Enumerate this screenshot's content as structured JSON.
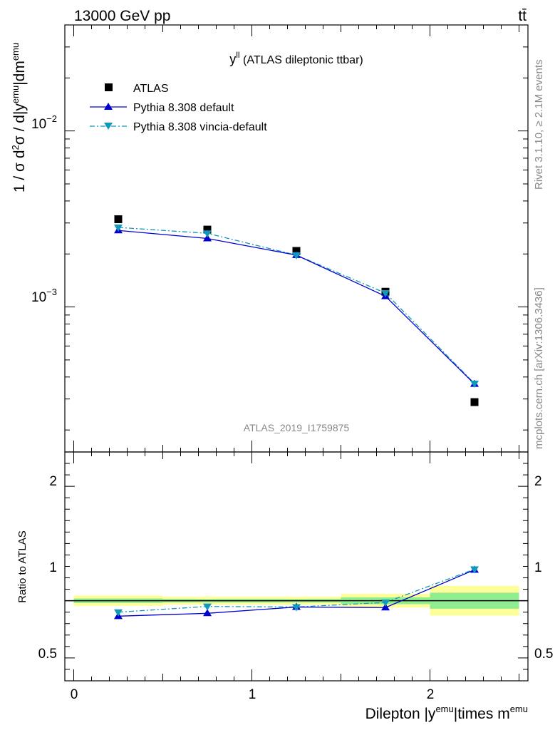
{
  "header": {
    "energy_label": "13000 GeV pp",
    "process_label": "tt̄"
  },
  "side_labels": {
    "rivet": "Rivet 3.1.10, ≥ 2.1M events",
    "mcplots": "mcplots.cern.ch [arXiv:1306.3436]"
  },
  "watermark": "ATLAS_2019_I1759875",
  "colors": {
    "atlas": "#000000",
    "pythia_default": "#0000cc",
    "pythia_vincia": "#1199bb",
    "band_inner": "#90ee90",
    "band_outer": "#ffff99"
  },
  "chart_data": [
    {
      "type": "scatter",
      "panel": "main",
      "title_main": "y",
      "title_sup": "ll",
      "title_rest": " (ATLAS dileptonic ttbar)",
      "ylabel": "1 / σ  d²σ / d|y^emu|dm^emu",
      "yscale": "log",
      "ylim": [
        0.00015,
        0.04
      ],
      "xlim": [
        -0.05,
        2.55
      ],
      "yticks": [
        {
          "value": 0.01,
          "base": "10",
          "exp": "−2"
        },
        {
          "value": 0.001,
          "base": "10",
          "exp": "−3"
        }
      ],
      "legend": [
        {
          "label": "ATLAS",
          "style": "square"
        },
        {
          "label": "Pythia 8.308 default",
          "style": "solid-triangle-up"
        },
        {
          "label": "Pythia 8.308 vincia-default",
          "style": "dashdot-triangle-down"
        }
      ],
      "legend_position": "top-left",
      "series": [
        {
          "name": "ATLAS",
          "x": [
            0.25,
            0.75,
            1.25,
            1.75,
            2.25
          ],
          "y": [
            0.00315,
            0.00275,
            0.00208,
            0.00122,
            0.000288
          ]
        },
        {
          "name": "Pythia 8.308 default",
          "x": [
            0.25,
            0.75,
            1.25,
            1.75,
            2.25
          ],
          "y": [
            0.00272,
            0.00245,
            0.00197,
            0.00115,
            0.000365
          ]
        },
        {
          "name": "Pythia 8.308 vincia-default",
          "x": [
            0.25,
            0.75,
            1.25,
            1.75,
            2.25
          ],
          "y": [
            0.00283,
            0.00262,
            0.00197,
            0.0012,
            0.000367
          ]
        }
      ]
    },
    {
      "type": "line",
      "panel": "ratio",
      "ylabel": "Ratio to ATLAS",
      "ylim": [
        0.3,
        2.3
      ],
      "xlim": [
        -0.05,
        2.55
      ],
      "yticks": [
        {
          "value": 0.5,
          "label": "0.5"
        },
        {
          "value": 1,
          "label": "1"
        },
        {
          "value": 2,
          "label": "2"
        }
      ],
      "xticks": [
        {
          "value": 0,
          "label": "0"
        },
        {
          "value": 1,
          "label": "1"
        },
        {
          "value": 2,
          "label": "2"
        }
      ],
      "xlabel_main": "Dilepton |y",
      "xlabel_sup1": "emu",
      "xlabel_mid": "|times m",
      "xlabel_sup2": "emu",
      "bands": [
        {
          "x0": 0.0,
          "x1": 0.5,
          "inner": 0.02,
          "outer": 0.045
        },
        {
          "x0": 0.5,
          "x1": 1.0,
          "inner": 0.015,
          "outer": 0.035
        },
        {
          "x0": 1.0,
          "x1": 1.5,
          "inner": 0.015,
          "outer": 0.035
        },
        {
          "x0": 1.5,
          "x1": 2.0,
          "inner": 0.03,
          "outer": 0.06
        },
        {
          "x0": 2.0,
          "x1": 2.5,
          "inner": 0.07,
          "outer": 0.13
        }
      ],
      "series": [
        {
          "name": "Pythia 8.308 default",
          "x": [
            0.25,
            0.75,
            1.25,
            1.75,
            2.25
          ],
          "y": [
            0.865,
            0.89,
            0.945,
            0.94,
            1.27
          ]
        },
        {
          "name": "Pythia 8.308 vincia-default",
          "x": [
            0.25,
            0.75,
            1.25,
            1.75,
            2.25
          ],
          "y": [
            0.9,
            0.95,
            0.945,
            0.985,
            1.275
          ]
        }
      ]
    }
  ]
}
